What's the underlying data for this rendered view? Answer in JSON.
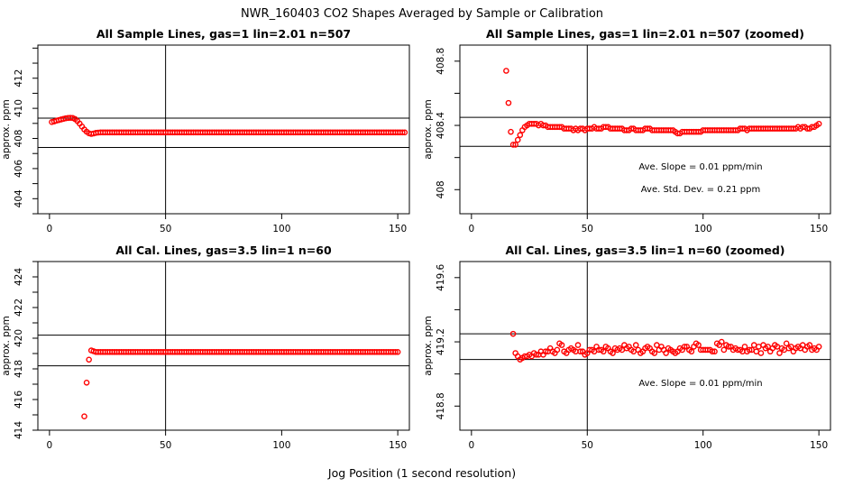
{
  "figure": {
    "title": "NWR_160403  CO2 Shapes Averaged by Sample or Calibration",
    "xlabel": "Jog Position (1 second resolution)",
    "point_color": "#ff0000"
  },
  "chart_data": [
    {
      "type": "scatter",
      "title": "All Sample Lines, gas=1 lin=2.01 n=507",
      "xlabel": "",
      "ylabel": "approx. ppm",
      "xlim": [
        -5,
        155
      ],
      "ylim": [
        403.0,
        414.2
      ],
      "xticks": [
        0,
        50,
        100,
        150
      ],
      "yticks": [
        404,
        406,
        408,
        410,
        412
      ],
      "hlines": [
        409.35,
        407.4
      ],
      "vlines": [
        50
      ],
      "annotations": [],
      "series": [
        {
          "x_start": 1,
          "x_end": 150,
          "values": [
            409.09,
            409.13,
            409.18,
            409.22,
            409.26,
            409.3,
            409.34,
            409.36,
            409.37,
            409.36,
            409.29,
            409.16,
            408.99,
            408.79,
            408.6,
            408.45,
            408.34,
            408.3,
            408.33,
            408.37,
            408.39,
            408.4,
            408.4,
            408.4,
            408.4,
            408.4,
            408.4,
            408.4,
            408.4,
            408.4,
            408.4,
            408.4,
            408.4,
            408.4,
            408.4,
            408.4,
            408.4,
            408.4,
            408.4,
            408.4,
            408.4,
            408.4,
            408.4,
            408.4,
            408.4,
            408.4,
            408.4,
            408.4,
            408.4,
            408.4,
            408.4,
            408.4,
            408.4,
            408.4,
            408.4,
            408.4,
            408.4,
            408.4,
            408.4,
            408.4,
            408.4,
            408.4,
            408.4,
            408.4,
            408.4,
            408.4,
            408.4,
            408.4,
            408.4,
            408.4,
            408.4,
            408.4,
            408.4,
            408.4,
            408.4,
            408.4,
            408.4,
            408.4,
            408.4,
            408.4,
            408.4,
            408.4,
            408.4,
            408.4,
            408.4,
            408.4,
            408.4,
            408.4,
            408.4,
            408.4,
            408.4,
            408.4,
            408.4,
            408.4,
            408.4,
            408.4,
            408.4,
            408.4,
            408.4,
            408.4,
            408.4,
            408.4,
            408.4,
            408.4,
            408.4,
            408.4,
            408.4,
            408.4,
            408.4,
            408.4,
            408.4,
            408.4,
            408.4,
            408.4,
            408.4,
            408.4,
            408.4,
            408.4,
            408.4,
            408.4,
            408.4,
            408.4,
            408.4,
            408.4,
            408.4,
            408.4,
            408.4,
            408.4,
            408.4,
            408.4,
            408.4,
            408.4,
            408.4,
            408.4,
            408.4,
            408.4,
            408.4,
            408.4,
            408.4,
            408.4,
            408.4,
            408.4,
            408.4,
            408.4,
            408.4,
            408.4,
            408.4,
            408.4,
            408.4,
            408.4,
            408.4,
            408.4,
            408.4
          ]
        }
      ]
    },
    {
      "type": "scatter",
      "title": "All Sample Lines, gas=1 lin=2.01 n=507 (zoomed)",
      "xlabel": "",
      "ylabel": "approx. ppm",
      "xlim": [
        -5,
        155
      ],
      "ylim": [
        407.85,
        408.9
      ],
      "xticks": [
        0,
        50,
        100,
        150
      ],
      "yticks": [
        408.0,
        408.4,
        408.8
      ],
      "hlines": [
        408.45,
        408.27
      ],
      "vlines": [
        50
      ],
      "annotations": [
        "Ave. Slope =  0.01  ppm/min",
        "Ave. Std. Dev. =  0.21  ppm"
      ],
      "series": [
        {
          "x_start": 15,
          "x_end": 150,
          "values": [
            408.74,
            408.54,
            408.36,
            408.28,
            408.28,
            408.31,
            408.34,
            408.37,
            408.39,
            408.4,
            408.41,
            408.41,
            408.41,
            408.41,
            408.4,
            408.41,
            408.4,
            408.4,
            408.39,
            408.39,
            408.39,
            408.39,
            408.39,
            408.39,
            408.39,
            408.38,
            408.38,
            408.38,
            408.38,
            408.37,
            408.38,
            408.37,
            408.38,
            408.38,
            408.37,
            408.38,
            408.38,
            408.38,
            408.39,
            408.38,
            408.38,
            408.38,
            408.39,
            408.39,
            408.39,
            408.38,
            408.38,
            408.38,
            408.38,
            408.38,
            408.38,
            408.37,
            408.37,
            408.37,
            408.38,
            408.38,
            408.37,
            408.37,
            408.37,
            408.37,
            408.38,
            408.38,
            408.38,
            408.37,
            408.37,
            408.37,
            408.37,
            408.37,
            408.37,
            408.37,
            408.37,
            408.37,
            408.37,
            408.36,
            408.35,
            408.35,
            408.36,
            408.36,
            408.36,
            408.36,
            408.36,
            408.36,
            408.36,
            408.36,
            408.36,
            408.37,
            408.37,
            408.37,
            408.37,
            408.37,
            408.37,
            408.37,
            408.37,
            408.37,
            408.37,
            408.37,
            408.37,
            408.37,
            408.37,
            408.37,
            408.37,
            408.38,
            408.38,
            408.38,
            408.37,
            408.38,
            408.38,
            408.38,
            408.38,
            408.38,
            408.38,
            408.38,
            408.38,
            408.38,
            408.38,
            408.38,
            408.38,
            408.38,
            408.38,
            408.38,
            408.38,
            408.38,
            408.38,
            408.38,
            408.38,
            408.38,
            408.39,
            408.38,
            408.39,
            408.39,
            408.38,
            408.38,
            408.39,
            408.39,
            408.4,
            408.41
          ]
        }
      ]
    },
    {
      "type": "scatter",
      "title": "All Cal. Lines, gas=3.5 lin=1 n=60",
      "xlabel": "",
      "ylabel": "approx. ppm",
      "xlim": [
        -5,
        155
      ],
      "ylim": [
        414.0,
        425.0
      ],
      "xticks": [
        0,
        50,
        100,
        150
      ],
      "yticks": [
        414,
        416,
        418,
        420,
        422,
        424
      ],
      "hlines": [
        420.2,
        418.2
      ],
      "vlines": [
        50
      ],
      "annotations": [],
      "series": [
        {
          "x_start": 15,
          "x_end": 150,
          "values": [
            414.9,
            417.1,
            418.6,
            419.2,
            419.15,
            419.1,
            419.1,
            419.1,
            419.1,
            419.1,
            419.1,
            419.1,
            419.1,
            419.1,
            419.1,
            419.1,
            419.1,
            419.1,
            419.1,
            419.1,
            419.1,
            419.1,
            419.1,
            419.1,
            419.1,
            419.1,
            419.1,
            419.1,
            419.1,
            419.1,
            419.1,
            419.1,
            419.1,
            419.1,
            419.1,
            419.1,
            419.1,
            419.1,
            419.1,
            419.1,
            419.1,
            419.1,
            419.1,
            419.1,
            419.1,
            419.1,
            419.1,
            419.1,
            419.1,
            419.1,
            419.1,
            419.1,
            419.1,
            419.1,
            419.1,
            419.1,
            419.1,
            419.1,
            419.1,
            419.1,
            419.1,
            419.1,
            419.1,
            419.1,
            419.1,
            419.1,
            419.1,
            419.1,
            419.1,
            419.1,
            419.1,
            419.1,
            419.1,
            419.1,
            419.1,
            419.1,
            419.1,
            419.1,
            419.1,
            419.1,
            419.1,
            419.1,
            419.1,
            419.1,
            419.1,
            419.1,
            419.1,
            419.1,
            419.1,
            419.1,
            419.1,
            419.1,
            419.1,
            419.1,
            419.1,
            419.1,
            419.1,
            419.1,
            419.1,
            419.1,
            419.1,
            419.1,
            419.1,
            419.1,
            419.1,
            419.1,
            419.1,
            419.1,
            419.1,
            419.1,
            419.1,
            419.1,
            419.1,
            419.1,
            419.1,
            419.1,
            419.1,
            419.1,
            419.1,
            419.1,
            419.1,
            419.1,
            419.1,
            419.1,
            419.1,
            419.1,
            419.1,
            419.1,
            419.1,
            419.1,
            419.1,
            419.1,
            419.1,
            419.1,
            419.1,
            419.1
          ]
        }
      ]
    },
    {
      "type": "scatter",
      "title": "All Cal. Lines, gas=3.5 lin=1 n=60 (zoomed)",
      "xlabel": "",
      "ylabel": "approx. ppm",
      "xlim": [
        -5,
        155
      ],
      "ylim": [
        418.65,
        419.7
      ],
      "xticks": [
        0,
        50,
        100,
        150
      ],
      "yticks": [
        418.8,
        419.2,
        419.6
      ],
      "hlines": [
        419.25,
        419.09
      ],
      "vlines": [
        50
      ],
      "annotations": [
        "Ave. Slope =  0.01  ppm/min"
      ],
      "series": [
        {
          "x_start": 18,
          "x_end": 150,
          "values": [
            419.25,
            419.13,
            419.11,
            419.09,
            419.1,
            419.11,
            419.11,
            419.12,
            419.11,
            419.13,
            419.12,
            419.12,
            419.14,
            419.12,
            419.14,
            419.14,
            419.16,
            419.14,
            419.13,
            419.15,
            419.19,
            419.18,
            419.14,
            419.13,
            419.15,
            419.16,
            419.15,
            419.14,
            419.18,
            419.14,
            419.14,
            419.12,
            419.13,
            419.15,
            419.15,
            419.14,
            419.17,
            419.15,
            419.15,
            419.14,
            419.17,
            419.16,
            419.14,
            419.13,
            419.16,
            419.15,
            419.16,
            419.15,
            419.18,
            419.16,
            419.17,
            419.15,
            419.14,
            419.18,
            419.15,
            419.13,
            419.14,
            419.16,
            419.17,
            419.16,
            419.14,
            419.13,
            419.18,
            419.15,
            419.17,
            419.15,
            419.13,
            419.16,
            419.15,
            419.14,
            419.13,
            419.14,
            419.16,
            419.15,
            419.17,
            419.17,
            419.15,
            419.14,
            419.17,
            419.19,
            419.18,
            419.15,
            419.15,
            419.15,
            419.15,
            419.15,
            419.14,
            419.14,
            419.19,
            419.18,
            419.2,
            419.15,
            419.18,
            419.17,
            419.17,
            419.15,
            419.16,
            419.15,
            419.15,
            419.14,
            419.17,
            419.14,
            419.15,
            419.15,
            419.18,
            419.14,
            419.17,
            419.13,
            419.18,
            419.16,
            419.17,
            419.14,
            419.16,
            419.18,
            419.17,
            419.13,
            419.16,
            419.15,
            419.19,
            419.16,
            419.17,
            419.14,
            419.16,
            419.17,
            419.16,
            419.18,
            419.15,
            419.17,
            419.18,
            419.15,
            419.16,
            419.15,
            419.17
          ]
        }
      ]
    }
  ]
}
